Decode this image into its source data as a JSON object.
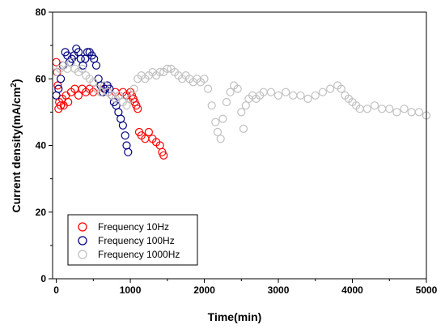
{
  "chart_data": {
    "type": "scatter",
    "xlabel": "Time(min)",
    "ylabel_main": "Current density(mA/cm",
    "ylabel_sup": "2",
    "ylabel_end": ")",
    "xlim": [
      -50,
      5000
    ],
    "ylim": [
      0,
      80
    ],
    "xticks": [
      0,
      1000,
      2000,
      3000,
      4000,
      5000
    ],
    "yticks": [
      0,
      20,
      40,
      60,
      80
    ],
    "xtick_labels": [
      "0",
      "1000",
      "2000",
      "3000",
      "4000",
      "5000"
    ],
    "ytick_labels": [
      "0",
      "20",
      "40",
      "60",
      "80"
    ],
    "legend_position": "bottom-left",
    "series": [
      {
        "name": "Frequency 10Hz",
        "color": "#ff0000",
        "marker": "open-circle",
        "x": [
          0,
          10,
          20,
          30,
          40,
          60,
          80,
          100,
          130,
          160,
          200,
          250,
          300,
          350,
          400,
          450,
          500,
          550,
          600,
          650,
          700,
          750,
          800,
          850,
          900,
          950,
          1000,
          1020,
          1040,
          1060,
          1080,
          1100,
          1120,
          1150,
          1200,
          1250,
          1300,
          1350,
          1400,
          1430,
          1450
        ],
        "y": [
          65,
          62,
          58,
          51,
          53,
          52,
          54,
          52,
          55,
          53,
          56,
          57,
          55,
          57,
          56,
          57,
          56,
          57,
          56,
          57,
          56,
          55,
          56,
          55,
          56,
          55,
          56,
          55,
          54,
          53,
          52,
          51,
          44,
          43,
          42,
          44,
          42,
          41,
          40,
          38,
          37
        ]
      },
      {
        "name": "Frequency 100Hz",
        "color": "#000080",
        "marker": "open-circle",
        "x": [
          0,
          30,
          60,
          90,
          120,
          150,
          180,
          210,
          240,
          270,
          300,
          330,
          360,
          390,
          420,
          450,
          480,
          510,
          540,
          570,
          600,
          630,
          660,
          690,
          720,
          750,
          780,
          810,
          840,
          870,
          900,
          930,
          950,
          970
        ],
        "y": [
          55,
          57,
          60,
          64,
          68,
          67,
          65,
          66,
          67,
          69,
          68,
          66,
          64,
          66,
          68,
          68,
          67,
          66,
          64,
          60,
          58,
          56,
          57,
          58,
          57,
          55,
          53,
          52,
          50,
          48,
          46,
          43,
          40,
          38
        ]
      },
      {
        "name": "Frequency 1000Hz",
        "color": "#c0c0c0",
        "marker": "open-circle",
        "x": [
          0,
          50,
          100,
          150,
          200,
          250,
          300,
          350,
          400,
          450,
          500,
          550,
          600,
          650,
          700,
          750,
          800,
          850,
          900,
          950,
          1000,
          1050,
          1100,
          1150,
          1200,
          1250,
          1300,
          1350,
          1400,
          1450,
          1500,
          1550,
          1600,
          1650,
          1700,
          1750,
          1800,
          1850,
          1900,
          1950,
          2000,
          2050,
          2100,
          2150,
          2180,
          2220,
          2250,
          2300,
          2350,
          2400,
          2450,
          2500,
          2530,
          2560,
          2600,
          2650,
          2700,
          2750,
          2800,
          2900,
          3000,
          3100,
          3200,
          3300,
          3400,
          3500,
          3600,
          3700,
          3800,
          3850,
          3900,
          3950,
          4000,
          4050,
          4100,
          4200,
          4300,
          4400,
          4500,
          4600,
          4700,
          4800,
          4900,
          5000
        ],
        "y": [
          62,
          63,
          64,
          63,
          65,
          63,
          62,
          63,
          61,
          60,
          59,
          57,
          56,
          58,
          56,
          55,
          54,
          55,
          53,
          52,
          54,
          57,
          60,
          61,
          60,
          61,
          62,
          61,
          62,
          62,
          63,
          63,
          62,
          61,
          60,
          61,
          60,
          59,
          60,
          59,
          60,
          57,
          52,
          47,
          44,
          42,
          48,
          53,
          56,
          58,
          57,
          50,
          45,
          52,
          54,
          55,
          54,
          55,
          56,
          56,
          55,
          56,
          55,
          55,
          54,
          55,
          56,
          57,
          58,
          57,
          55,
          54,
          53,
          52,
          51,
          51,
          52,
          51,
          51,
          50,
          51,
          50,
          50,
          49
        ]
      }
    ]
  }
}
